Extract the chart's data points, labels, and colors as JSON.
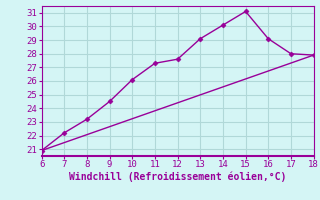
{
  "xlabel": "Windchill (Refroidissement éolien,°C)",
  "xlim": [
    6,
    18
  ],
  "ylim": [
    20.5,
    31.5
  ],
  "xticks": [
    6,
    7,
    8,
    9,
    10,
    11,
    12,
    13,
    14,
    15,
    16,
    17,
    18
  ],
  "yticks": [
    21,
    22,
    23,
    24,
    25,
    26,
    27,
    28,
    29,
    30,
    31
  ],
  "line1_x": [
    6,
    7,
    8,
    9,
    10,
    11,
    12,
    13,
    14,
    15,
    16,
    17,
    18
  ],
  "line1_y": [
    20.9,
    22.2,
    23.2,
    24.5,
    26.1,
    27.3,
    27.6,
    29.1,
    30.1,
    31.1,
    29.1,
    28.0,
    27.9
  ],
  "line2_x": [
    6,
    18
  ],
  "line2_y": [
    20.9,
    27.9
  ],
  "line_color": "#990099",
  "bg_color": "#d4f5f5",
  "grid_color": "#b0d8d8",
  "tick_color": "#990099",
  "label_color": "#990099",
  "marker": "D",
  "marker_size": 2.5,
  "line_width": 1.0,
  "font_size_ticks": 6.5,
  "font_size_label": 7.0
}
